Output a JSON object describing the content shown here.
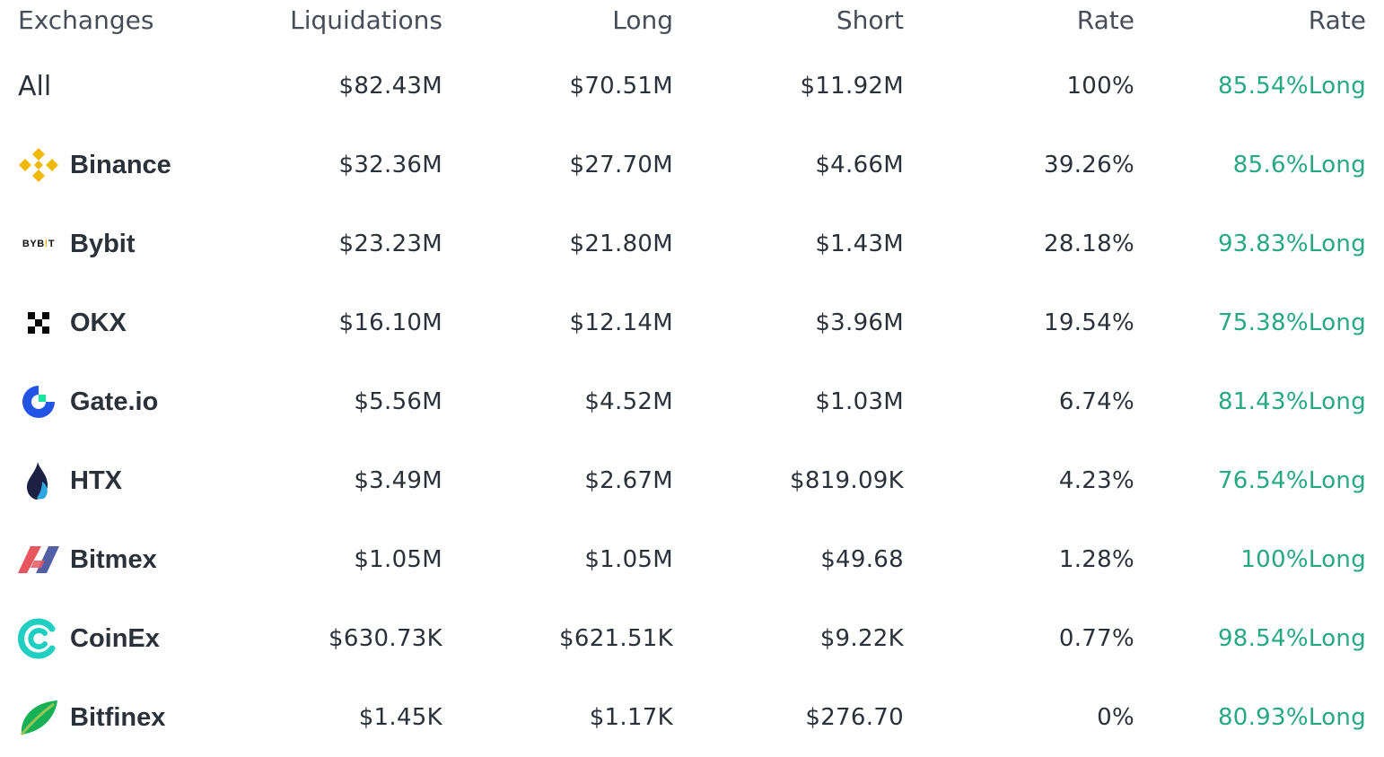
{
  "columns": {
    "exchanges": "Exchanges",
    "liquidations": "Liquidations",
    "long": "Long",
    "short": "Short",
    "rate": "Rate",
    "ratio": "Rate"
  },
  "rows": [
    {
      "name": "All",
      "liquidations": "$82.43M",
      "long": "$70.51M",
      "short": "$11.92M",
      "rate": "100%",
      "ratio": "85.54%Long"
    },
    {
      "name": "Binance",
      "icon": "binance-logo",
      "liquidations": "$32.36M",
      "long": "$27.70M",
      "short": "$4.66M",
      "rate": "39.26%",
      "ratio": "85.6%Long"
    },
    {
      "name": "Bybit",
      "icon": "bybit-logo",
      "logo_text": "BYB!T",
      "liquidations": "$23.23M",
      "long": "$21.80M",
      "short": "$1.43M",
      "rate": "28.18%",
      "ratio": "93.83%Long"
    },
    {
      "name": "OKX",
      "icon": "okx-logo",
      "liquidations": "$16.10M",
      "long": "$12.14M",
      "short": "$3.96M",
      "rate": "19.54%",
      "ratio": "75.38%Long"
    },
    {
      "name": "Gate.io",
      "icon": "gateio-logo",
      "liquidations": "$5.56M",
      "long": "$4.52M",
      "short": "$1.03M",
      "rate": "6.74%",
      "ratio": "81.43%Long"
    },
    {
      "name": "HTX",
      "icon": "htx-logo",
      "liquidations": "$3.49M",
      "long": "$2.67M",
      "short": "$819.09K",
      "rate": "4.23%",
      "ratio": "76.54%Long"
    },
    {
      "name": "Bitmex",
      "icon": "bitmex-logo",
      "liquidations": "$1.05M",
      "long": "$1.05M",
      "short": "$49.68",
      "rate": "1.28%",
      "ratio": "100%Long"
    },
    {
      "name": "CoinEx",
      "icon": "coinex-logo",
      "liquidations": "$630.73K",
      "long": "$621.51K",
      "short": "$9.22K",
      "rate": "0.77%",
      "ratio": "98.54%Long"
    },
    {
      "name": "Bitfinex",
      "icon": "bitfinex-logo",
      "liquidations": "$1.45K",
      "long": "$1.17K",
      "short": "$276.70",
      "rate": "0%",
      "ratio": "80.93%Long"
    }
  ],
  "colors": {
    "long_ratio": "#26a884",
    "text": "#2b3139",
    "header": "#474d57"
  }
}
